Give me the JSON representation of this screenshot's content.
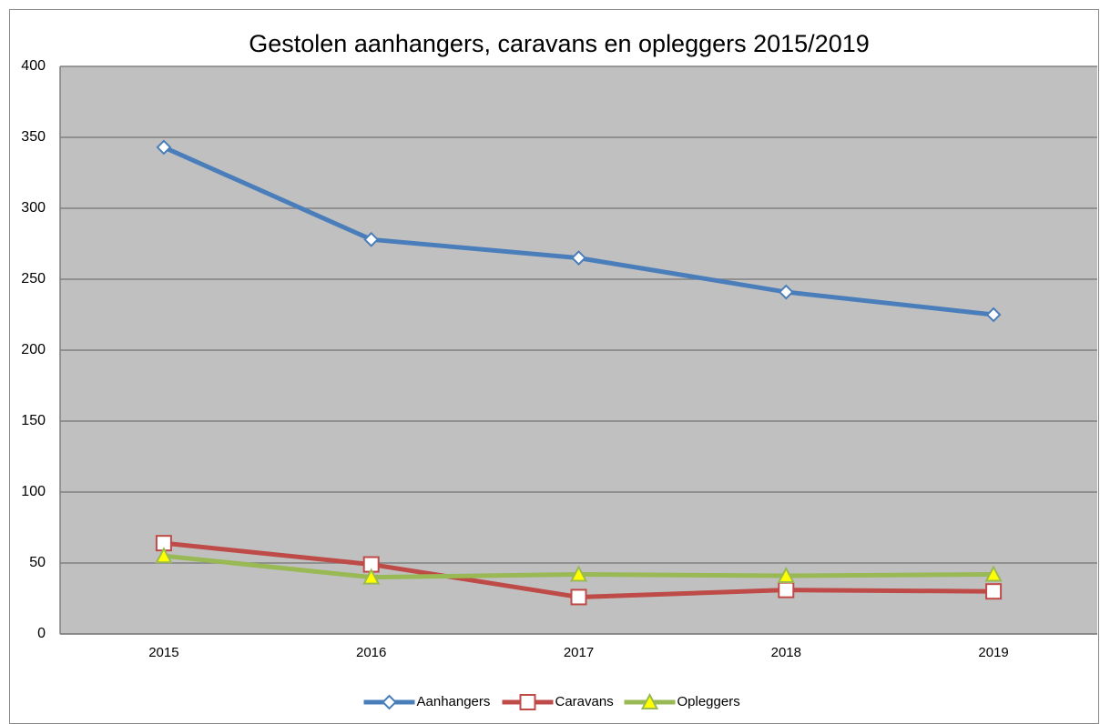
{
  "chart_data": {
    "type": "line",
    "title": "Gestolen aanhangers, caravans en opleggers 2015/2019",
    "categories": [
      "2015",
      "2016",
      "2017",
      "2018",
      "2019"
    ],
    "series": [
      {
        "name": "Aanhangers",
        "color": "#4a7ebb",
        "marker": "diamond",
        "values": [
          343,
          278,
          265,
          241,
          225
        ]
      },
      {
        "name": "Caravans",
        "color": "#be4b48",
        "marker": "square",
        "values": [
          64,
          49,
          26,
          31,
          30
        ]
      },
      {
        "name": "Opleggers",
        "color": "#98b954",
        "marker": "triangle",
        "values": [
          55,
          40,
          42,
          41,
          42
        ]
      }
    ],
    "ylim": [
      0,
      400
    ],
    "yticks": [
      0,
      50,
      100,
      150,
      200,
      250,
      300,
      350,
      400
    ],
    "grid": true,
    "legend": "bottom"
  }
}
